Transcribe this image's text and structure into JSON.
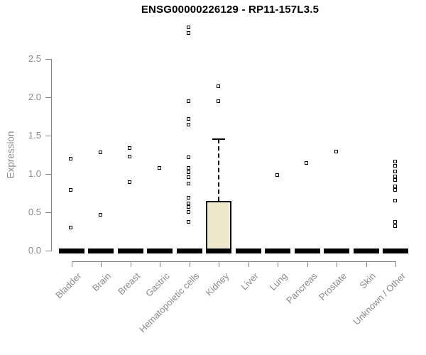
{
  "chart_data": {
    "type": "boxplot",
    "title": "ENSG00000226129 - RP11-157L3.5",
    "ylabel": "Expression",
    "xlabel": "",
    "ylim": [
      0,
      2.5
    ],
    "yticks": [
      "0.0",
      "0.5",
      "1.0",
      "1.5",
      "2.0",
      "2.5"
    ],
    "grid": false,
    "legend": "none",
    "categories": [
      "Bladder",
      "Brain",
      "Breast",
      "Gastric",
      "Hematopoietic cells",
      "Kidney",
      "Liver",
      "Lung",
      "Pancreas",
      "Prostate",
      "Skin",
      "Unknown / Other"
    ],
    "boxes": [
      {
        "category": "Bladder",
        "median": 0,
        "q1": 0,
        "q3": 0,
        "whisker_low": 0,
        "whisker_high": 0,
        "outliers": [
          0.29,
          0.78,
          1.19
        ]
      },
      {
        "category": "Brain",
        "median": 0,
        "q1": 0,
        "q3": 0,
        "whisker_low": 0,
        "whisker_high": 0,
        "outliers": [
          0.46,
          1.27
        ]
      },
      {
        "category": "Breast",
        "median": 0,
        "q1": 0,
        "q3": 0,
        "whisker_low": 0,
        "whisker_high": 0,
        "outliers": [
          0.88,
          1.22,
          1.33
        ]
      },
      {
        "category": "Gastric",
        "median": 0,
        "q1": 0,
        "q3": 0,
        "whisker_low": 0,
        "whisker_high": 0,
        "outliers": [
          1.07
        ]
      },
      {
        "category": "Hematopoietic cells",
        "median": 0,
        "q1": 0,
        "q3": 0,
        "whisker_low": 0,
        "whisker_high": 0,
        "outliers": [
          0.37,
          0.5,
          0.56,
          0.61,
          0.68,
          0.87,
          0.95,
          1.01,
          1.07,
          1.21,
          1.63,
          1.71,
          1.94,
          2.83,
          2.9
        ]
      },
      {
        "category": "Kidney",
        "median": 0,
        "q1": 0,
        "q3": 0.65,
        "whisker_low": 0,
        "whisker_high": 1.45,
        "outliers": [
          1.94,
          2.13
        ]
      },
      {
        "category": "Liver",
        "median": 0,
        "q1": 0,
        "q3": 0,
        "whisker_low": 0,
        "whisker_high": 0,
        "outliers": []
      },
      {
        "category": "Lung",
        "median": 0,
        "q1": 0,
        "q3": 0,
        "whisker_low": 0,
        "whisker_high": 0,
        "outliers": [
          0.98
        ]
      },
      {
        "category": "Pancreas",
        "median": 0,
        "q1": 0,
        "q3": 0,
        "whisker_low": 0,
        "whisker_high": 0,
        "outliers": [
          1.13
        ]
      },
      {
        "category": "Prostate",
        "median": 0,
        "q1": 0,
        "q3": 0,
        "whisker_low": 0,
        "whisker_high": 0,
        "outliers": [
          1.28
        ]
      },
      {
        "category": "Skin",
        "median": 0,
        "q1": 0,
        "q3": 0,
        "whisker_low": 0,
        "whisker_high": 0,
        "outliers": []
      },
      {
        "category": "Unknown / Other",
        "median": 0,
        "q1": 0,
        "q3": 0,
        "whisker_low": 0,
        "whisker_high": 0,
        "outliers": [
          0.31,
          0.37,
          0.64,
          0.78,
          0.83,
          0.91,
          0.96,
          1.02,
          1.1,
          1.15
        ]
      }
    ],
    "colors": {
      "box_fill": "#eee8cd",
      "box_border": "#000000",
      "median": "#000000",
      "point": "#000000",
      "axis": "#848484",
      "tick_label": "#8a8a8a",
      "title": "#000000",
      "background": "#ffffff"
    }
  }
}
